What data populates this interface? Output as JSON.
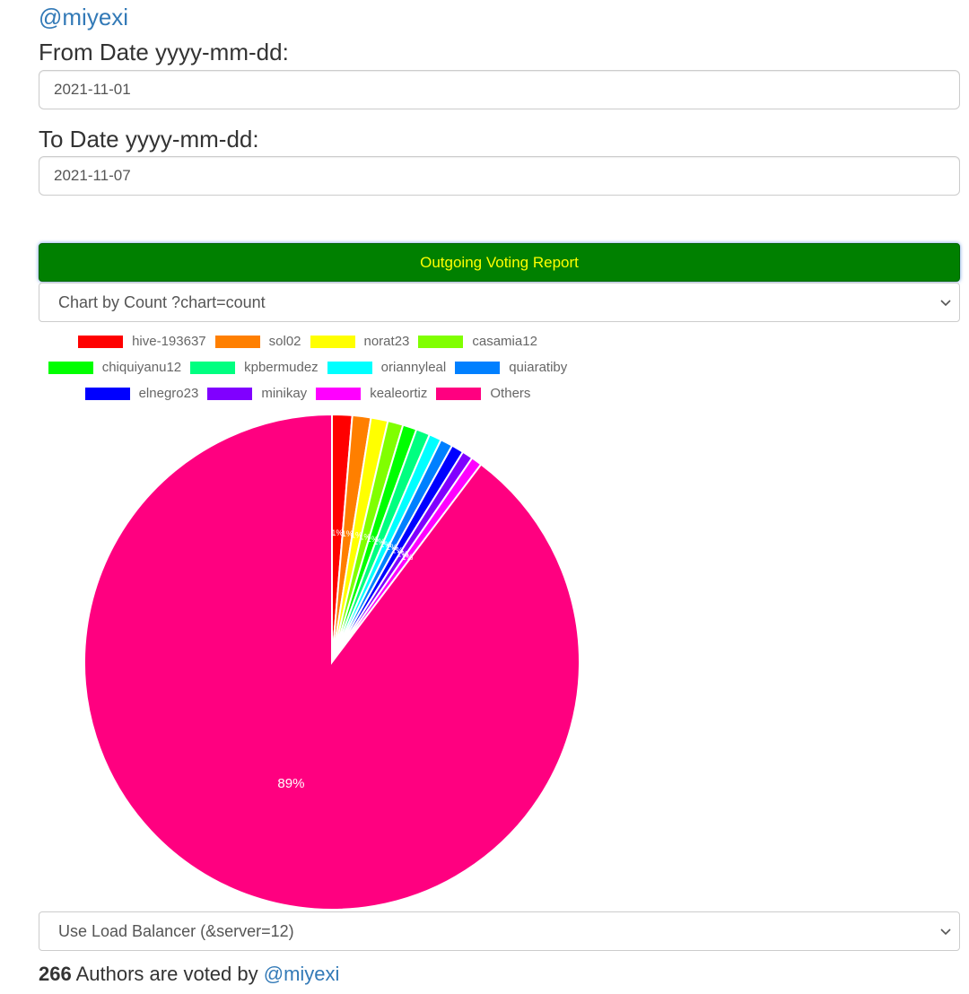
{
  "header": {
    "user_link": "@miyexi"
  },
  "form": {
    "from_label": "From Date yyyy-mm-dd:",
    "from_value": "2021-11-01",
    "to_label": "To Date yyyy-mm-dd:",
    "to_value": "2021-11-07",
    "report_button": "Outgoing Voting Report",
    "chart_select": "Chart by Count ?chart=count",
    "server_select": "Use Load Balancer (&server=12)"
  },
  "footer": {
    "count": "266",
    "text": " Authors are voted by ",
    "user_link": "@miyexi"
  },
  "chart_data": {
    "type": "pie",
    "title": "",
    "legend_position": "top",
    "categories": [
      "hive-193637",
      "sol02",
      "norat23",
      "casamia12",
      "chiquiyanu12",
      "kpbermudez",
      "oriannyleal",
      "quiaratiby",
      "elnegro23",
      "minikay",
      "kealeortiz",
      "Others"
    ],
    "values": [
      1.3,
      1.2,
      1.1,
      1.0,
      0.9,
      0.9,
      0.8,
      0.8,
      0.8,
      0.7,
      0.7,
      89.0
    ],
    "colors": [
      "#ff0000",
      "#ff7f00",
      "#ffff00",
      "#80ff00",
      "#00ff00",
      "#00ff80",
      "#00ffff",
      "#0080ff",
      "#0000ff",
      "#8000ff",
      "#ff00ff",
      "#ff0080"
    ],
    "data_labels": [
      "1%",
      "1%",
      "1%",
      "1%",
      "1%",
      "1%",
      "1%",
      "1%",
      "1%",
      "1%",
      "1%",
      "89%"
    ]
  }
}
